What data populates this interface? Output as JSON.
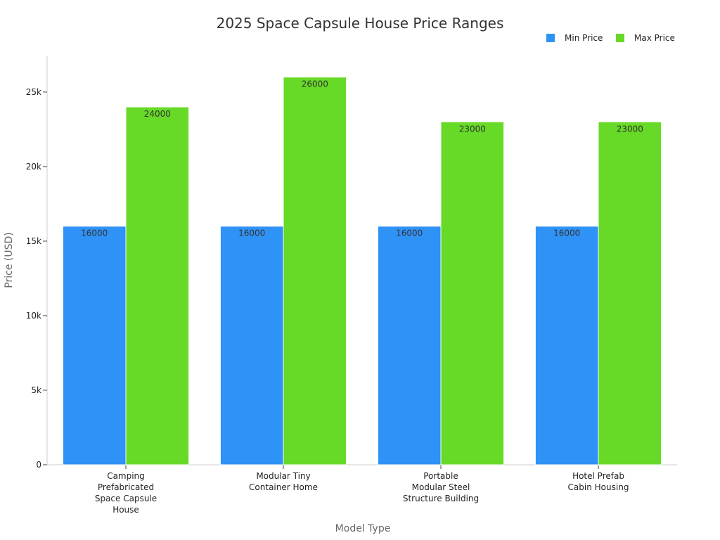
{
  "chart_data": {
    "type": "bar",
    "title": "2025 Space Capsule House Price Ranges",
    "xlabel": "Model Type",
    "ylabel": "Price (USD)",
    "categories": [
      [
        "Camping",
        "Prefabricated",
        "Space Capsule",
        "House"
      ],
      [
        "Modular Tiny",
        "Container Home"
      ],
      [
        "Portable",
        "Modular Steel",
        "Structure Building"
      ],
      [
        "Hotel Prefab",
        "Cabin Housing"
      ]
    ],
    "series": [
      {
        "name": "Min Price",
        "color": "#2f92f7",
        "values": [
          16000,
          16000,
          16000,
          16000
        ]
      },
      {
        "name": "Max Price",
        "color": "#66da26",
        "values": [
          24000,
          26000,
          23000,
          23000
        ]
      }
    ],
    "ylim": [
      0,
      27400
    ],
    "yticks": [
      0,
      5000,
      10000,
      15000,
      20000,
      25000
    ],
    "ytick_labels": [
      "0",
      "5k",
      "10k",
      "15k",
      "20k",
      "25k"
    ],
    "grid": false,
    "legend": "top-right",
    "data_labels": true
  }
}
